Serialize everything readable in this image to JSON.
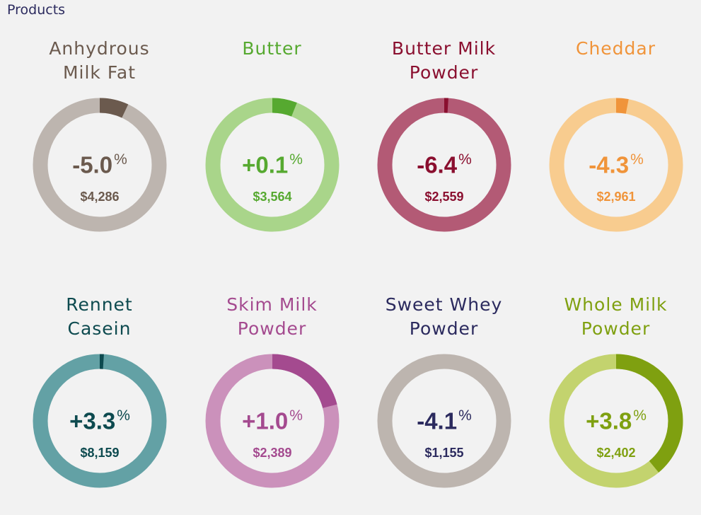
{
  "section_title": "Products",
  "chart_data": {
    "type": "donut-grid",
    "items": [
      {
        "name_lines": [
          "Anhydrous",
          "Milk Fat"
        ],
        "change": "-5.0",
        "price": "$4,286",
        "ring_share": 0.07,
        "color_main": "#6b5a4e",
        "color_light": "#bdb5af"
      },
      {
        "name_lines": [
          "Butter"
        ],
        "change": "+0.1",
        "price": "$3,564",
        "ring_share": 0.06,
        "color_main": "#56a930",
        "color_light": "#a9d58a"
      },
      {
        "name_lines": [
          "Butter Milk",
          "Powder"
        ],
        "change": "-6.4",
        "price": "$2,559",
        "ring_share": 0.01,
        "color_main": "#8a0f2f",
        "color_light": "#b35a75"
      },
      {
        "name_lines": [
          "Cheddar"
        ],
        "change": "-4.3",
        "price": "$2,961",
        "ring_share": 0.03,
        "color_main": "#f0943a",
        "color_light": "#f8cc8f"
      },
      {
        "name_lines": [
          "Rennet",
          "Casein"
        ],
        "change": "+3.3",
        "price": "$8,159",
        "ring_share": 0.01,
        "color_main": "#0d4a4f",
        "color_light": "#63a1a5"
      },
      {
        "name_lines": [
          "Skim Milk",
          "Powder"
        ],
        "change": "+1.0",
        "price": "$2,389",
        "ring_share": 0.21,
        "color_main": "#a44a8f",
        "color_light": "#cb91bb"
      },
      {
        "name_lines": [
          "Sweet Whey",
          "Powder"
        ],
        "change": "-4.1",
        "price": "$1,155",
        "ring_share": 0.0,
        "color_main": "#2b2a5e",
        "color_light": "#bdb5af"
      },
      {
        "name_lines": [
          "Whole Milk",
          "Powder"
        ],
        "change": "+3.8",
        "price": "$2,402",
        "ring_share": 0.39,
        "color_main": "#7fa010",
        "color_light": "#c3d36e"
      }
    ]
  }
}
